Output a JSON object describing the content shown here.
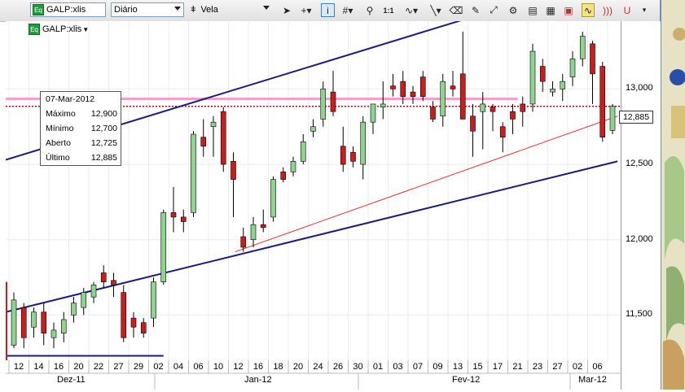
{
  "toolbar": {
    "symbol_value": "GALP:xlis",
    "period_value": "Diário",
    "chart_type_value": "Vela",
    "icons": [
      "pointer-icon",
      "crosshair-icon",
      "info-icon",
      "grid-icon",
      "zoom-icon",
      "one-to-one-icon",
      "wave-icon",
      "line-icon",
      "eraser-icon",
      "pencil-icon",
      "magic-icon",
      "dock-icon",
      "chart-icon",
      "layers-icon",
      "wave-indicator-icon",
      "sound-icon",
      "magnet-icon"
    ]
  },
  "chart": {
    "symbol_label": "GALP:xlis",
    "eq_badge": "Eq",
    "current_price": "12,885",
    "tooltip": {
      "date": "07-Mar-2012",
      "rows": [
        {
          "label": "Máximo",
          "value": "12,900"
        },
        {
          "label": "Mínimo",
          "value": "12,700"
        },
        {
          "label": "Aberto",
          "value": "12,725"
        },
        {
          "label": "Último",
          "value": "12,885"
        }
      ]
    },
    "y_axis_labels": [
      "13,000",
      "12,500",
      "12,000",
      "11,500"
    ],
    "x_axis_days": [
      "12",
      "14",
      "16",
      "20",
      "22",
      "27",
      "29",
      "02",
      "04",
      "06",
      "10",
      "12",
      "16",
      "18",
      "20",
      "24",
      "26",
      "30",
      "01",
      "03",
      "07",
      "09",
      "13",
      "15",
      "17",
      "21",
      "23",
      "27",
      "02",
      "06"
    ],
    "months": [
      "Dez-11",
      "Jan-12",
      "Fev-12",
      "Mar-12"
    ]
  },
  "chart_data": {
    "type": "candlestick",
    "title": "",
    "ylim": [
      11.2,
      13.45
    ],
    "up_color": "#8ed38e",
    "down_color": "#c81e1e",
    "candles": [
      {
        "o": 11.3,
        "h": 11.65,
        "l": 11.28,
        "c": 11.6
      },
      {
        "o": 11.55,
        "h": 11.58,
        "l": 11.28,
        "c": 11.35
      },
      {
        "o": 11.42,
        "h": 11.55,
        "l": 11.35,
        "c": 11.52
      },
      {
        "o": 11.52,
        "h": 11.58,
        "l": 11.3,
        "c": 11.38
      },
      {
        "o": 11.35,
        "h": 11.45,
        "l": 11.28,
        "c": 11.4
      },
      {
        "o": 11.38,
        "h": 11.52,
        "l": 11.32,
        "c": 11.47
      },
      {
        "o": 11.5,
        "h": 11.62,
        "l": 11.45,
        "c": 11.58
      },
      {
        "o": 11.55,
        "h": 11.68,
        "l": 11.5,
        "c": 11.65
      },
      {
        "o": 11.62,
        "h": 11.72,
        "l": 11.58,
        "c": 11.7
      },
      {
        "o": 11.78,
        "h": 11.83,
        "l": 11.68,
        "c": 11.72
      },
      {
        "o": 11.73,
        "h": 11.78,
        "l": 11.62,
        "c": 11.7
      },
      {
        "o": 11.65,
        "h": 11.7,
        "l": 11.32,
        "c": 11.35
      },
      {
        "o": 11.48,
        "h": 11.52,
        "l": 11.35,
        "c": 11.42
      },
      {
        "o": 11.45,
        "h": 11.48,
        "l": 11.35,
        "c": 11.38
      },
      {
        "o": 11.48,
        "h": 11.75,
        "l": 11.42,
        "c": 11.72
      },
      {
        "o": 11.72,
        "h": 12.2,
        "l": 11.7,
        "c": 12.18
      },
      {
        "o": 12.18,
        "h": 12.35,
        "l": 12.05,
        "c": 12.15
      },
      {
        "o": 12.15,
        "h": 12.2,
        "l": 12.05,
        "c": 12.12
      },
      {
        "o": 12.18,
        "h": 12.72,
        "l": 12.15,
        "c": 12.7
      },
      {
        "o": 12.68,
        "h": 12.8,
        "l": 12.55,
        "c": 12.62
      },
      {
        "o": 12.75,
        "h": 12.82,
        "l": 12.55,
        "c": 12.78
      },
      {
        "o": 12.85,
        "h": 12.88,
        "l": 12.45,
        "c": 12.5
      },
      {
        "o": 12.52,
        "h": 12.58,
        "l": 12.15,
        "c": 12.4
      },
      {
        "o": 12.02,
        "h": 12.08,
        "l": 11.92,
        "c": 11.95
      },
      {
        "o": 12.0,
        "h": 12.15,
        "l": 11.95,
        "c": 12.1
      },
      {
        "o": 12.1,
        "h": 12.2,
        "l": 12.05,
        "c": 12.08
      },
      {
        "o": 12.15,
        "h": 12.42,
        "l": 12.12,
        "c": 12.4
      },
      {
        "o": 12.45,
        "h": 12.48,
        "l": 12.38,
        "c": 12.4
      },
      {
        "o": 12.45,
        "h": 12.55,
        "l": 12.42,
        "c": 12.52
      },
      {
        "o": 12.52,
        "h": 12.7,
        "l": 12.5,
        "c": 12.65
      },
      {
        "o": 12.72,
        "h": 12.8,
        "l": 12.68,
        "c": 12.75
      },
      {
        "o": 12.8,
        "h": 13.05,
        "l": 12.75,
        "c": 13.0
      },
      {
        "o": 12.98,
        "h": 13.12,
        "l": 12.82,
        "c": 12.85
      },
      {
        "o": 12.62,
        "h": 12.75,
        "l": 12.45,
        "c": 12.5
      },
      {
        "o": 12.58,
        "h": 12.62,
        "l": 12.48,
        "c": 12.52
      },
      {
        "o": 12.5,
        "h": 12.82,
        "l": 12.4,
        "c": 12.78
      },
      {
        "o": 12.78,
        "h": 12.9,
        "l": 12.7,
        "c": 12.9
      },
      {
        "o": 12.88,
        "h": 13.05,
        "l": 12.8,
        "c": 12.9
      },
      {
        "o": 13.02,
        "h": 13.1,
        "l": 12.95,
        "c": 13.0
      },
      {
        "o": 13.05,
        "h": 13.12,
        "l": 12.9,
        "c": 12.95
      },
      {
        "o": 12.98,
        "h": 13.02,
        "l": 12.9,
        "c": 12.95
      },
      {
        "o": 13.08,
        "h": 13.12,
        "l": 12.92,
        "c": 12.95
      },
      {
        "o": 12.88,
        "h": 12.92,
        "l": 12.78,
        "c": 12.8
      },
      {
        "o": 12.82,
        "h": 13.1,
        "l": 12.75,
        "c": 13.05
      },
      {
        "o": 13.02,
        "h": 13.12,
        "l": 12.95,
        "c": 13.0
      },
      {
        "o": 13.1,
        "h": 13.38,
        "l": 12.8,
        "c": 12.8
      },
      {
        "o": 12.82,
        "h": 12.9,
        "l": 12.55,
        "c": 12.72
      },
      {
        "o": 12.85,
        "h": 12.98,
        "l": 12.6,
        "c": 12.9
      },
      {
        "o": 12.88,
        "h": 12.9,
        "l": 12.72,
        "c": 12.85
      },
      {
        "o": 12.75,
        "h": 12.78,
        "l": 12.58,
        "c": 12.68
      },
      {
        "o": 12.85,
        "h": 12.9,
        "l": 12.7,
        "c": 12.8
      },
      {
        "o": 12.9,
        "h": 12.95,
        "l": 12.75,
        "c": 12.85
      },
      {
        "o": 12.9,
        "h": 13.3,
        "l": 12.85,
        "c": 13.25
      },
      {
        "o": 13.15,
        "h": 13.2,
        "l": 12.98,
        "c": 13.05
      },
      {
        "o": 12.98,
        "h": 13.05,
        "l": 12.95,
        "c": 13.0
      },
      {
        "o": 13.0,
        "h": 13.1,
        "l": 12.92,
        "c": 13.05
      },
      {
        "o": 13.08,
        "h": 13.25,
        "l": 13.02,
        "c": 13.2
      },
      {
        "o": 13.2,
        "h": 13.38,
        "l": 13.15,
        "c": 13.35
      },
      {
        "o": 13.3,
        "h": 13.32,
        "l": 12.9,
        "c": 13.1
      },
      {
        "o": 13.15,
        "h": 13.18,
        "l": 12.65,
        "c": 12.68
      },
      {
        "o": 12.725,
        "h": 12.9,
        "l": 12.7,
        "c": 12.885
      }
    ],
    "lines": [
      {
        "name": "upper-channel",
        "color": "#1a1a80",
        "x": [
          0,
          49.5
        ],
        "y": [
          12.53,
          13.55
        ]
      },
      {
        "name": "lower-channel",
        "color": "#1a1a80",
        "x": [
          0,
          60.5
        ],
        "y": [
          11.52,
          12.52
        ]
      },
      {
        "name": "base-line",
        "color": "#1a1a80",
        "x": [
          0,
          15
        ],
        "y": [
          11.23,
          11.23
        ]
      },
      {
        "name": "red-trend",
        "color": "#e83030",
        "x": [
          23,
          60.5
        ],
        "y": [
          11.92,
          12.82
        ]
      }
    ],
    "hlines": [
      {
        "name": "resistance",
        "color": "#f0a0d0",
        "y": 12.935,
        "x0": 0,
        "x1": 50.5
      },
      {
        "name": "last-price",
        "color": "#c00000",
        "y": 12.885,
        "dotted": true
      }
    ]
  }
}
